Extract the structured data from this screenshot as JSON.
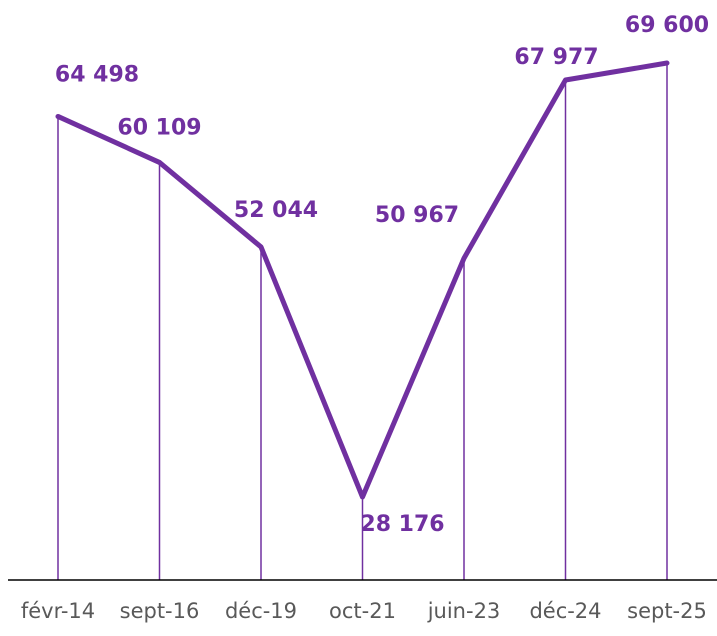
{
  "chart_data": {
    "type": "line",
    "categories": [
      "févr-14",
      "sept-16",
      "déc-19",
      "oct-21",
      "juin-23",
      "déc-24",
      "sept-25"
    ],
    "values": [
      64498,
      60109,
      52044,
      28176,
      50967,
      67977,
      69600
    ],
    "value_labels": [
      "64 498",
      "60 109",
      "52 044",
      "28 176",
      "50 967",
      "67 977",
      "69 600"
    ],
    "color": "#7030a0"
  }
}
